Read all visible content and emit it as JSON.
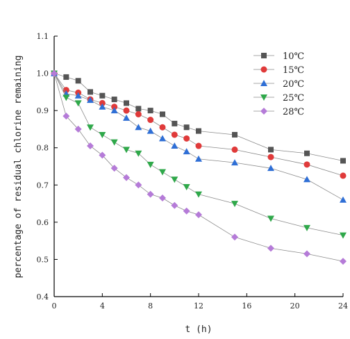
{
  "chart_data": {
    "type": "line",
    "xlabel": "t (h)",
    "ylabel": "percentage of residual chlorine remaining",
    "xlim": [
      0,
      24
    ],
    "ylim": [
      0.4,
      1.1
    ],
    "x_ticks": [
      0,
      4,
      8,
      12,
      16,
      20,
      24
    ],
    "y_ticks": [
      0.4,
      0.5,
      0.6,
      0.7,
      0.8,
      0.9,
      1.0,
      1.1
    ],
    "grid": false,
    "legend_position": "top-right",
    "series": [
      {
        "name": "10℃",
        "marker": "square",
        "color": "#555555",
        "x": [
          0,
          1,
          2,
          3,
          4,
          5,
          6,
          7,
          8,
          9,
          10,
          11,
          12,
          15,
          18,
          21,
          24
        ],
        "y": [
          1.0,
          0.99,
          0.98,
          0.95,
          0.94,
          0.93,
          0.92,
          0.905,
          0.9,
          0.89,
          0.865,
          0.855,
          0.845,
          0.835,
          0.795,
          0.785,
          0.765
        ]
      },
      {
        "name": "15℃",
        "marker": "circle",
        "color": "#e03a3a",
        "x": [
          0,
          1,
          2,
          3,
          4,
          5,
          6,
          7,
          8,
          9,
          10,
          11,
          12,
          15,
          18,
          21,
          24
        ],
        "y": [
          1.0,
          0.955,
          0.948,
          0.93,
          0.92,
          0.91,
          0.9,
          0.89,
          0.875,
          0.855,
          0.835,
          0.825,
          0.805,
          0.795,
          0.775,
          0.755,
          0.725
        ]
      },
      {
        "name": "20℃",
        "marker": "triangle-up",
        "color": "#2f6fd6",
        "x": [
          0,
          1,
          2,
          3,
          4,
          5,
          6,
          7,
          8,
          9,
          10,
          11,
          12,
          15,
          18,
          21,
          24
        ],
        "y": [
          1.0,
          0.945,
          0.94,
          0.928,
          0.91,
          0.9,
          0.88,
          0.855,
          0.845,
          0.825,
          0.805,
          0.79,
          0.77,
          0.76,
          0.745,
          0.715,
          0.66
        ]
      },
      {
        "name": "25℃",
        "marker": "triangle-down",
        "color": "#2fa84a",
        "x": [
          0,
          1,
          2,
          3,
          4,
          5,
          6,
          7,
          8,
          9,
          10,
          11,
          12,
          15,
          18,
          21,
          24
        ],
        "y": [
          1.0,
          0.935,
          0.92,
          0.855,
          0.835,
          0.815,
          0.795,
          0.785,
          0.755,
          0.735,
          0.715,
          0.695,
          0.675,
          0.65,
          0.61,
          0.585,
          0.565
        ]
      },
      {
        "name": "28℃",
        "marker": "diamond",
        "color": "#b57bd8",
        "x": [
          0,
          1,
          2,
          3,
          4,
          5,
          6,
          7,
          8,
          9,
          10,
          11,
          12,
          15,
          18,
          21,
          24
        ],
        "y": [
          1.0,
          0.885,
          0.85,
          0.805,
          0.78,
          0.745,
          0.72,
          0.7,
          0.675,
          0.665,
          0.645,
          0.63,
          0.62,
          0.56,
          0.53,
          0.515,
          0.495
        ]
      }
    ]
  }
}
